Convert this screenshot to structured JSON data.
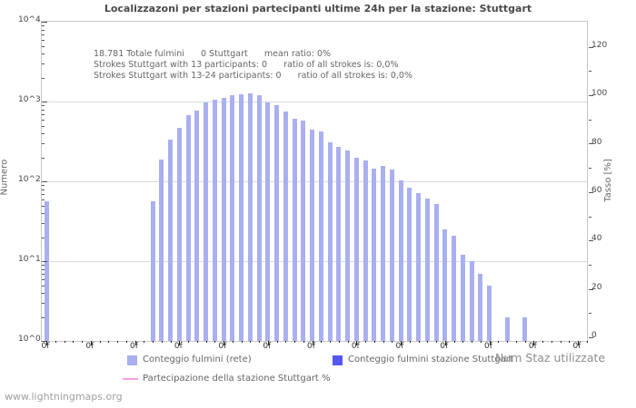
{
  "title": "Localizzazoni per stazioni partecipanti ultime 24h per la stazione: Stuttgart",
  "annotation": {
    "lines": [
      "18.781 Totale fulmini      0 Stuttgart      mean ratio: 0%",
      "Strokes Stuttgart with 13 participants: 0      ratio of all strokes is: 0,0%",
      "Strokes Stuttgart with 13-24 participants: 0      ratio of all strokes is: 0,0%"
    ]
  },
  "watermark": "www.lightningmaps.org",
  "chart_data": {
    "type": "bar",
    "title": "Localizzazoni per stazioni partecipanti ultime 24h per la stazione: Stuttgart",
    "xlabel": "",
    "ylabel_left": "Numero",
    "ylabel_right": "Tasso [%]",
    "y_scale_left": "log",
    "ylim_left": [
      1,
      10000
    ],
    "ylim_right": [
      0,
      120
    ],
    "grid": "horizontal-decades",
    "legend_position": "bottom",
    "y_ticks_left": [
      "10^0",
      "10^1",
      "10^2",
      "10^3",
      "10^4"
    ],
    "y_ticks_right": [
      "0",
      "20",
      "40",
      "60",
      "80",
      "100",
      "120"
    ],
    "x_tick_label": "0f",
    "num_slots": 62,
    "major_tick_every": 5,
    "legend_extra": "Num Staz utilizzate",
    "series": [
      {
        "name": "Conteggio fulmini (rete)",
        "type": "bar",
        "color": "#aaaff0",
        "values": [
          57,
          0,
          0,
          0,
          0,
          0,
          0,
          0,
          0,
          0,
          0,
          0,
          57,
          190,
          330,
          475,
          676,
          770,
          966,
          1055,
          1100,
          1190,
          1220,
          1274,
          1190,
          983,
          900,
          757,
          608,
          583,
          448,
          418,
          309,
          270,
          243,
          200,
          184,
          144,
          155,
          142,
          103,
          84,
          72,
          61,
          52,
          25,
          21,
          12,
          10,
          7,
          5,
          0,
          2,
          0,
          2,
          0,
          0,
          0,
          0,
          0,
          0,
          0
        ]
      },
      {
        "name": "Conteggio fulmini stazione Stuttgart",
        "type": "bar",
        "color": "#5557ef",
        "values": [
          0,
          0,
          0,
          0,
          0,
          0,
          0,
          0,
          0,
          0,
          0,
          0,
          0,
          0,
          0,
          0,
          0,
          0,
          0,
          0,
          0,
          0,
          0,
          0,
          0,
          0,
          0,
          0,
          0,
          0,
          0,
          0,
          0,
          0,
          0,
          0,
          0,
          0,
          0,
          0,
          0,
          0,
          0,
          0,
          0,
          0,
          0,
          0,
          0,
          0,
          0,
          0,
          0,
          0,
          0,
          0,
          0,
          0,
          0,
          0,
          0,
          0
        ]
      },
      {
        "name": "Partecipazione della stazione Stuttgart %",
        "type": "line",
        "color": "#f2a2e8",
        "values": [
          0,
          0,
          0,
          0,
          0,
          0,
          0,
          0,
          0,
          0,
          0,
          0,
          0,
          0,
          0,
          0,
          0,
          0,
          0,
          0,
          0,
          0,
          0,
          0,
          0,
          0,
          0,
          0,
          0,
          0,
          0,
          0,
          0,
          0,
          0,
          0,
          0,
          0,
          0,
          0,
          0,
          0,
          0,
          0,
          0,
          0,
          0,
          0,
          0,
          0,
          0,
          0,
          0,
          0,
          0,
          0,
          0,
          0,
          0,
          0,
          0,
          0
        ]
      }
    ]
  }
}
